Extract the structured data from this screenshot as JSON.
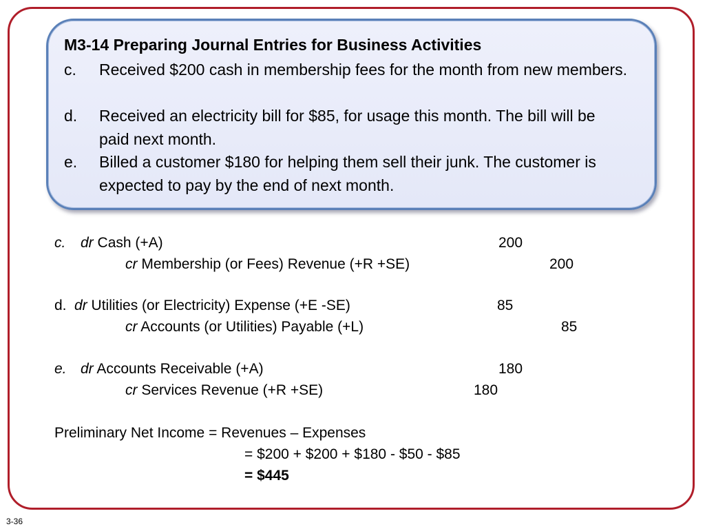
{
  "problem": {
    "title": "M3-14 Preparing Journal Entries for Business Activities",
    "items": [
      {
        "letter": "c.",
        "text": "Received $200 cash in membership fees for the month from new members."
      },
      {
        "letter": "d.",
        "text": "Received an electricity bill for $85, for usage this month. The bill will be paid next month."
      },
      {
        "letter": "e.",
        "text": "Billed a customer $180 for helping them sell their junk. The customer is expected to pay by the end of next month."
      }
    ]
  },
  "entries": [
    {
      "label": "c.",
      "debit": {
        "prefix": "dr",
        "account": "Cash (+A)",
        "amount": "200"
      },
      "credit": {
        "prefix": "cr",
        "account": "Membership (or Fees) Revenue (+R +SE)",
        "amount": "200"
      }
    },
    {
      "label": "d.",
      "debit": {
        "prefix": "dr",
        "account": "Utilities (or Electricity) Expense (+E -SE)",
        "amount": "85"
      },
      "credit": {
        "prefix": "cr",
        "account": "Accounts (or Utilities) Payable (+L)",
        "amount": "85"
      }
    },
    {
      "label": "e.",
      "debit": {
        "prefix": "dr",
        "account": "Accounts Receivable (+A)",
        "amount": "180"
      },
      "credit": {
        "prefix": "cr",
        "account": "Services Revenue (+R +SE)",
        "amount": "180"
      }
    }
  ],
  "net_income": {
    "line1": "Preliminary Net Income = Revenues – Expenses",
    "line2": "= $200 + $200 + $180  - $50 - $85",
    "line3": "= $445"
  },
  "slide_number": "3-36",
  "colors": {
    "frame": "#b01e2a",
    "box_border": "#5a80b8",
    "box_fill": "#e8ebf9"
  }
}
